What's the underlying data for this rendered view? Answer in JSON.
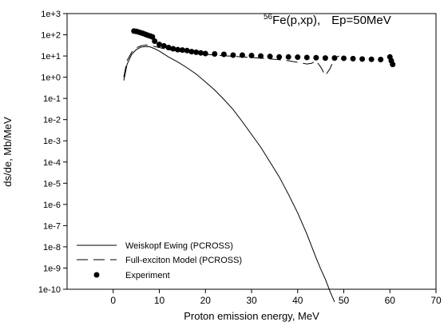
{
  "chart_data": {
    "type": "scatter",
    "title_prefix_sup": "56",
    "title_main": "Fe(p,xp),",
    "title_suffix": "Ep=50MeV",
    "xlabel": "Proton emission energy, MeV",
    "ylabel": "ds/de, Mb/MeV",
    "xlim": [
      -10,
      70
    ],
    "ylim_log10": [
      -10,
      3
    ],
    "x_ticks": [
      "0",
      "10",
      "20",
      "30",
      "40",
      "50",
      "60",
      "70"
    ],
    "y_ticks": [
      "1e-10",
      "1e-9",
      "1e-8",
      "1e-7",
      "1e-6",
      "1e-5",
      "1e-4",
      "1e-3",
      "1e-2",
      "1e-1",
      "1e+0",
      "1e+1",
      "1e+2",
      "1e+3"
    ],
    "y_scale": "log",
    "grid": false,
    "legend_position": "bottom-left",
    "series": [
      {
        "name": "Weiskopf Ewing (PCROSS)",
        "style": "solid",
        "x": [
          2.3,
          3,
          4,
          5,
          6,
          7,
          8,
          9,
          10,
          12,
          14,
          16,
          18,
          20,
          22,
          24,
          26,
          28,
          30,
          32,
          34,
          36,
          38,
          40,
          42,
          44,
          45,
          46,
          47,
          48
        ],
        "y": [
          0.7,
          4,
          12,
          20,
          26,
          28,
          27,
          22,
          17,
          9,
          5.2,
          2.8,
          1.4,
          0.6,
          0.25,
          0.09,
          0.03,
          0.008,
          0.002,
          0.0005,
          0.0001,
          2e-05,
          3e-06,
          4e-07,
          4e-08,
          3e-09,
          9e-10,
          3e-10,
          8e-11,
          2.5e-11
        ]
      },
      {
        "name": "Full-exciton Model (PCROSS)",
        "style": "dashed",
        "x": [
          2.3,
          3,
          4,
          5,
          6,
          7,
          8,
          9,
          10,
          12,
          14,
          16,
          18,
          20,
          25,
          30,
          35,
          38,
          40,
          42,
          43,
          44,
          45,
          46,
          47,
          48,
          49
        ],
        "y": [
          1,
          6,
          15,
          24,
          30,
          33,
          32,
          28,
          25,
          20,
          17,
          15,
          13,
          12,
          10,
          8.5,
          7,
          6,
          5,
          4.2,
          4.5,
          6,
          3,
          1.2,
          2.5,
          8,
          10
        ]
      },
      {
        "name": "Experiment",
        "style": "points",
        "x": [
          4.5,
          5,
          5.5,
          6,
          6.5,
          7,
          7.5,
          8,
          8.5,
          9,
          10,
          11,
          12,
          13,
          14,
          15,
          16,
          17,
          18,
          19,
          20,
          22,
          24,
          26,
          28,
          30,
          32,
          34,
          36,
          38,
          40,
          42,
          44,
          46,
          48,
          50,
          52,
          54,
          56,
          58,
          60,
          60.3,
          60.6
        ],
        "y": [
          150,
          145,
          135,
          125,
          115,
          105,
          95,
          88,
          80,
          50,
          35,
          30,
          25,
          22,
          20,
          19,
          18,
          16,
          15,
          14,
          13,
          12.5,
          12,
          11,
          11,
          10.5,
          10,
          9.5,
          9,
          9,
          8.8,
          8.5,
          8.3,
          8,
          8,
          7.8,
          7.5,
          7.2,
          7,
          6.8,
          9,
          6,
          4
        ]
      }
    ]
  }
}
